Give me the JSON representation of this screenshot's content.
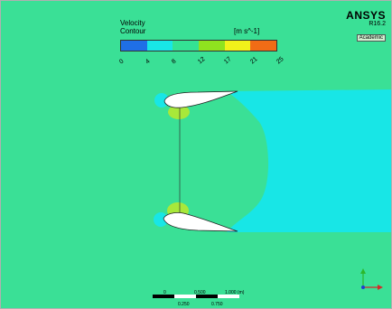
{
  "legend": {
    "title_line1": "Velocity",
    "title_line2": "Contour",
    "unit": "[m s^-1]",
    "ticks": [
      "0",
      "4",
      "8",
      "12",
      "17",
      "21",
      "25"
    ],
    "colors": [
      "#1f6fe6",
      "#18e6e6",
      "#34e394",
      "#8fe31f",
      "#f2f21a",
      "#f06c16"
    ]
  },
  "brand": {
    "name": "ANSYS",
    "version": "R16.2",
    "edition": "Academic"
  },
  "scale_bar": {
    "top_labels": [
      "0",
      "0.500",
      "1.000  (m)"
    ],
    "bottom_labels": [
      "0.250",
      "0.750"
    ]
  },
  "field_colors": {
    "background": "#3ae096",
    "wake": "#c4f5f5",
    "stagnation_low": "#18e6e6",
    "stagnation_high": "#a8e83a"
  }
}
